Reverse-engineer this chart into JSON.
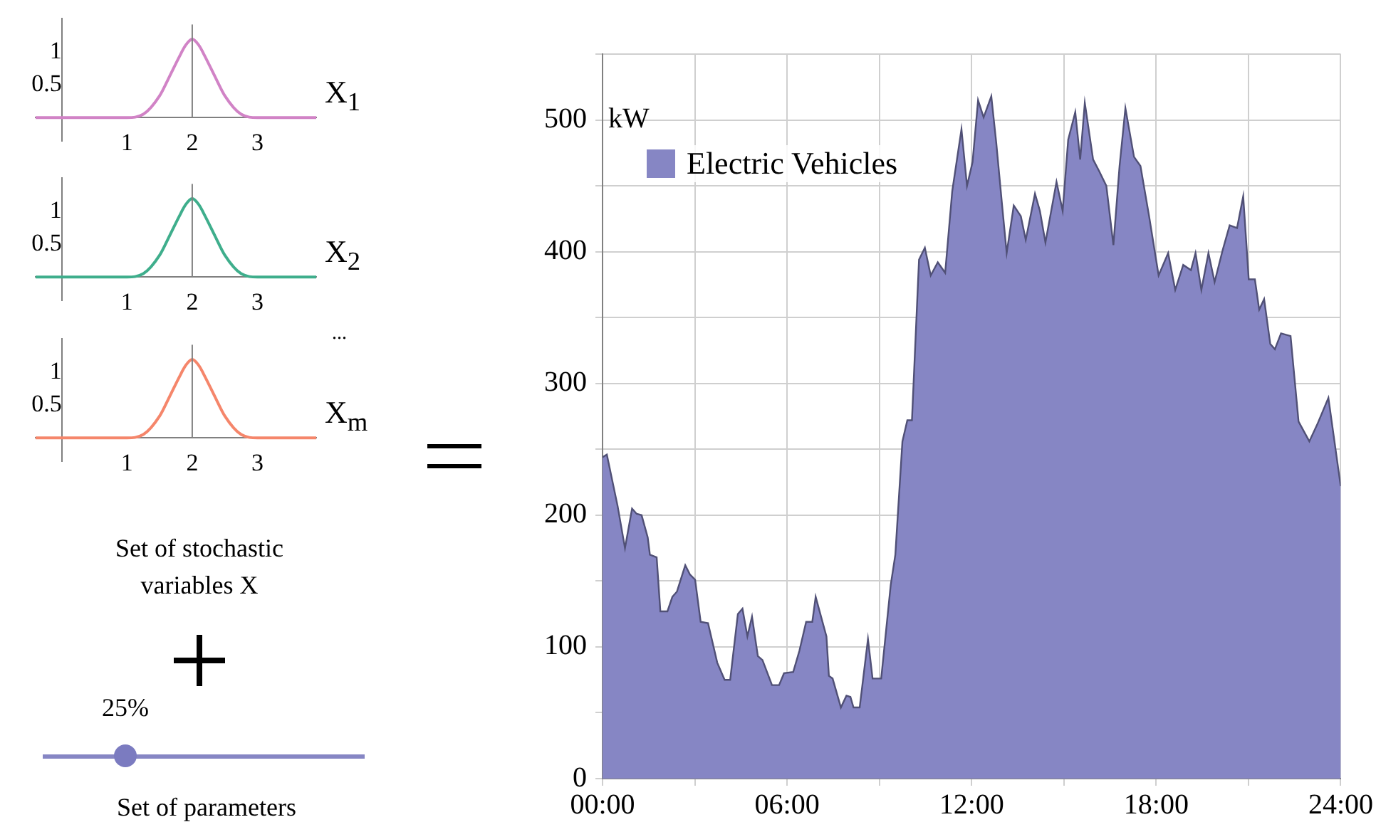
{
  "chart_data": [
    {
      "type": "line",
      "xlabel": "X$_{1}$",
      "x": [
        -0.4,
        0.8,
        1,
        1.25,
        1.5,
        1.65,
        1.8,
        1.9,
        2,
        2.1,
        2.2,
        2.35,
        2.5,
        2.75,
        3,
        3.2,
        3.9
      ],
      "series": [
        {
          "color": "#d183c6",
          "values": [
            0,
            0,
            0,
            0.05,
            0.33,
            0.62,
            0.92,
            1.1,
            1.19,
            1.1,
            0.92,
            0.62,
            0.33,
            0.05,
            0,
            0,
            0
          ]
        }
      ],
      "xlim": [
        -0.4,
        3.9
      ],
      "ylim": [
        -0.35,
        1.5
      ],
      "xticks": [
        1,
        2,
        3
      ],
      "yticks": [
        0.5,
        1
      ],
      "grid": false,
      "legend": false,
      "ref_lines": [
        {
          "axis": "x",
          "value": 2,
          "color": "#808080"
        }
      ]
    },
    {
      "type": "line",
      "xlabel": "X$_{2}$",
      "x": [
        -0.4,
        0.8,
        1,
        1.25,
        1.5,
        1.65,
        1.8,
        1.9,
        2,
        2.1,
        2.2,
        2.35,
        2.5,
        2.75,
        3,
        3.2,
        3.9
      ],
      "series": [
        {
          "color": "#3fae8c",
          "values": [
            0,
            0,
            0,
            0.05,
            0.33,
            0.62,
            0.92,
            1.1,
            1.19,
            1.1,
            0.92,
            0.62,
            0.33,
            0.05,
            0,
            0,
            0
          ]
        }
      ],
      "xlim": [
        -0.4,
        3.9
      ],
      "ylim": [
        -0.35,
        1.5
      ],
      "xticks": [
        1,
        2,
        3
      ],
      "yticks": [
        0.5,
        1
      ],
      "grid": false,
      "legend": false,
      "ref_lines": [
        {
          "axis": "x",
          "value": 2,
          "color": "#808080"
        }
      ]
    },
    {
      "type": "line",
      "xlabel": "X$_{m}$",
      "annotations": [
        "..."
      ],
      "x": [
        -0.4,
        0.8,
        1,
        1.25,
        1.5,
        1.65,
        1.8,
        1.9,
        2,
        2.1,
        2.2,
        2.35,
        2.5,
        2.75,
        3,
        3.2,
        3.9
      ],
      "series": [
        {
          "color": "#f5866b",
          "values": [
            0,
            0,
            0,
            0.05,
            0.33,
            0.62,
            0.92,
            1.1,
            1.19,
            1.1,
            0.92,
            0.62,
            0.33,
            0.05,
            0,
            0,
            0
          ]
        }
      ],
      "xlim": [
        -0.4,
        3.9
      ],
      "ylim": [
        -0.35,
        1.5
      ],
      "xticks": [
        1,
        2,
        3
      ],
      "yticks": [
        0.5,
        1
      ],
      "grid": false,
      "legend": false,
      "ref_lines": [
        {
          "axis": "x",
          "value": 2,
          "color": "#808080"
        }
      ]
    },
    {
      "type": "other",
      "annotations": [
        "Set of stochastic variables X",
        "25%",
        "Set of parameters"
      ]
    },
    {
      "type": "area",
      "ylabel": "kW",
      "legend": "top left",
      "grid": true,
      "x": [
        0,
        0.14,
        0.49,
        0.73,
        0.96,
        1.11,
        1.27,
        1.47,
        1.54,
        1.76,
        1.88,
        2.11,
        2.27,
        2.42,
        2.69,
        2.84,
        3.01,
        3.19,
        3.43,
        3.73,
        3.97,
        4.15,
        4.4,
        4.55,
        4.71,
        4.86,
        5.05,
        5.2,
        5.51,
        5.74,
        5.9,
        6.2,
        6.4,
        6.62,
        6.82,
        6.93,
        7.28,
        7.36,
        7.48,
        7.75,
        7.93,
        8.06,
        8.16,
        8.36,
        8.63,
        8.78,
        9.06,
        9.37,
        9.52,
        9.75,
        9.91,
        10.06,
        10.29,
        10.48,
        10.67,
        10.9,
        11.14,
        11.37,
        11.67,
        11.85,
        12.03,
        12.21,
        12.39,
        12.64,
        12.8,
        12.98,
        13.14,
        13.37,
        13.6,
        13.76,
        14.06,
        14.22,
        14.4,
        14.76,
        14.96,
        15.14,
        15.37,
        15.53,
        15.68,
        15.95,
        16.15,
        16.38,
        16.61,
        16.81,
        17,
        17.28,
        17.49,
        17.77,
        18.08,
        18.39,
        18.62,
        18.88,
        19.13,
        19.28,
        19.47,
        19.7,
        19.9,
        20.16,
        20.39,
        20.63,
        20.83,
        21.01,
        21.21,
        21.35,
        21.51,
        21.71,
        21.86,
        22.06,
        22.37,
        22.63,
        22.98,
        23.24,
        23.6,
        24
      ],
      "series": [
        {
          "name": "Electric Vehicles",
          "color": "#8686c4",
          "values": [
            244,
            246,
            207,
            175,
            205,
            201,
            200,
            183,
            170,
            168,
            127,
            127,
            138,
            142,
            162,
            155,
            151,
            119,
            118,
            88,
            75,
            75,
            125,
            129,
            108,
            123,
            93,
            90,
            71,
            71,
            80,
            81,
            97,
            119,
            119,
            138,
            108,
            78,
            76,
            54,
            63,
            62,
            54,
            54,
            106,
            76,
            76,
            147,
            170,
            256,
            272,
            272,
            394,
            403,
            382,
            392,
            384,
            446,
            493,
            450,
            468,
            515,
            502,
            518,
            483,
            438,
            399,
            435,
            427,
            409,
            444,
            431,
            407,
            453,
            431,
            485,
            506,
            470,
            513,
            470,
            461,
            450,
            405,
            465,
            509,
            472,
            465,
            427,
            382,
            399,
            371,
            390,
            386,
            399,
            371,
            399,
            377,
            401,
            420,
            418,
            442,
            379,
            379,
            356,
            364,
            330,
            326,
            338,
            336,
            271,
            256,
            269,
            289,
            222
          ]
        }
      ],
      "xlim": [
        0,
        24
      ],
      "xticks": [
        {
          "value": 0,
          "label": "00:00"
        },
        {
          "value": 3,
          "label": null
        },
        {
          "value": 6,
          "label": "06:00"
        },
        {
          "value": 9,
          "label": null
        },
        {
          "value": 12,
          "label": "12:00"
        },
        {
          "value": 15,
          "label": null
        },
        {
          "value": 18,
          "label": "18:00"
        },
        {
          "value": 21,
          "label": null
        },
        {
          "value": 24,
          "label": "24:00"
        }
      ],
      "ylim": [
        0,
        550
      ],
      "yticks": [
        0,
        {
          "value": 50,
          "label": null
        },
        100,
        {
          "value": 150,
          "label": null
        },
        200,
        {
          "value": 250,
          "label": null
        },
        300,
        {
          "value": 350,
          "label": null
        },
        400,
        {
          "value": 450,
          "label": null
        },
        500,
        {
          "value": 550,
          "label": null
        }
      ]
    }
  ]
}
